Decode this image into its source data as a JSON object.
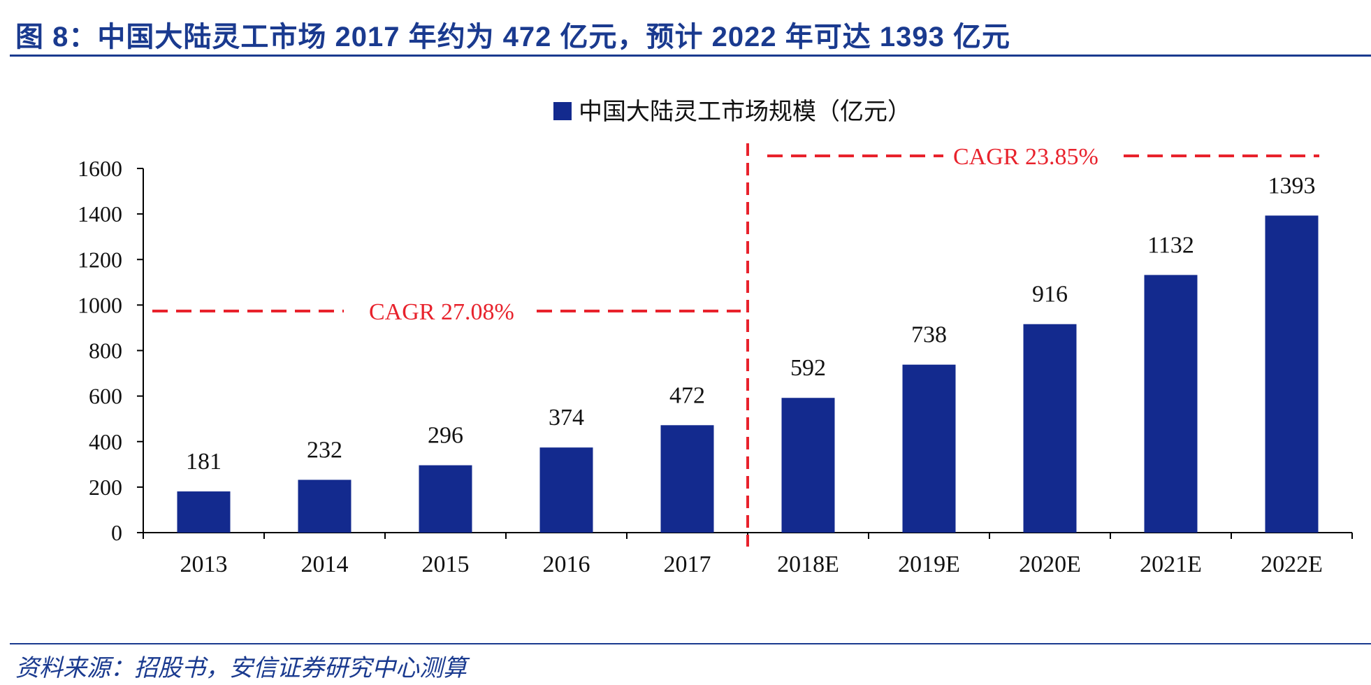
{
  "header": {
    "title": "图 8：中国大陆灵工市场 2017 年约为 472 亿元，预计 2022 年可达 1393 亿元"
  },
  "footer": {
    "source": "资料来源：招股书，安信证券研究中心测算"
  },
  "colors": {
    "bar": "#132a8e",
    "cagr": "#e8222c",
    "title": "#1a3a8f"
  },
  "chart_data": {
    "type": "bar",
    "categories": [
      "2013",
      "2014",
      "2015",
      "2016",
      "2017",
      "2018E",
      "2019E",
      "2020E",
      "2021E",
      "2022E"
    ],
    "series": [
      {
        "name": "中国大陆灵工市场规模（亿元）",
        "values": [
          181,
          232,
          296,
          374,
          472,
          592,
          738,
          916,
          1132,
          1393
        ]
      }
    ],
    "data_labels": [
      "181",
      "232",
      "296",
      "374",
      "472",
      "592",
      "738",
      "916",
      "1132",
      "1393"
    ],
    "yticks": [
      "0",
      "200",
      "400",
      "600",
      "800",
      "1000",
      "1200",
      "1400",
      "1600"
    ],
    "ylim": [
      0,
      1600
    ],
    "legend_position": "top-center",
    "annotations": [
      {
        "text": "CAGR 27.08%",
        "span": [
          "2013",
          "2017"
        ]
      },
      {
        "text": "CAGR 23.85%",
        "span": [
          "2018E",
          "2022E"
        ]
      }
    ],
    "grid": false
  }
}
